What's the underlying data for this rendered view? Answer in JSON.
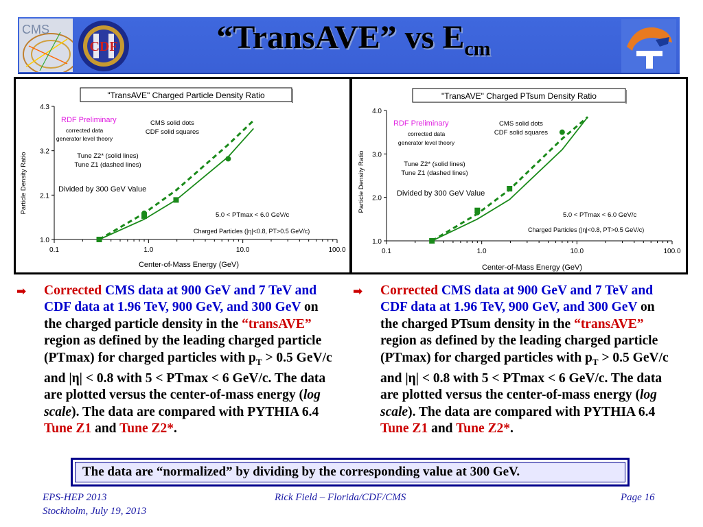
{
  "slide": {
    "title_main": "“TransAVE” vs E",
    "title_sub": "cm",
    "logos": {
      "cms_label": "CMS",
      "cdf_label": "CDF"
    }
  },
  "chart_data": [
    {
      "type": "line",
      "title": "\"TransAVE\" Charged Particle Density Ratio",
      "xlabel": "Center-of-Mass Energy  (GeV)",
      "ylabel": "Particle Density Ratio",
      "xscale": "log",
      "xlim": [
        0.1,
        100.0
      ],
      "ylim": [
        1.0,
        4.3
      ],
      "xticks": [
        "0.1",
        "1.0",
        "10.0",
        "100.0"
      ],
      "yticks": [
        "1.0",
        "2.1",
        "3.2",
        "4.3"
      ],
      "annotations": {
        "preliminary": "RDF Preliminary",
        "corrected": "corrected data",
        "generator": "generator level theory",
        "cms_marker": "CMS solid dots",
        "cdf_marker": "CDF solid squares",
        "tune_z2": "Tune Z2* (solid lines)",
        "tune_z1": "Tune Z1 (dashed lines)",
        "divided": "Divided by 300 GeV Value",
        "ptmax_range": "5.0 < PTmax < 6.0 GeV/c",
        "charged": "Charged Particles (|η|<0.8, PT>0.5 GeV/c)"
      },
      "series": [
        {
          "type": "scatter",
          "marker": "circle",
          "x": [
            0.9,
            7.0
          ],
          "y": [
            1.65,
            3.0
          ]
        },
        {
          "type": "scatter",
          "marker": "square",
          "x": [
            0.3,
            0.9,
            1.96
          ],
          "y": [
            1.0,
            1.58,
            1.98
          ]
        },
        {
          "type": "line",
          "style": "solid",
          "x": [
            0.3,
            0.9,
            1.96,
            7.0,
            13.0
          ],
          "y": [
            1.0,
            1.5,
            1.98,
            3.05,
            3.75
          ]
        },
        {
          "type": "line",
          "style": "dashed",
          "x": [
            0.3,
            0.9,
            1.96,
            7.0,
            13.0
          ],
          "y": [
            1.0,
            1.65,
            2.22,
            3.35,
            3.95
          ]
        }
      ]
    },
    {
      "type": "line",
      "title": "\"TransAVE\" Charged PTsum Density Ratio",
      "xlabel": "Center-of-Mass Energy  (GeV)",
      "ylabel": "Particle Density Ratio",
      "xscale": "log",
      "xlim": [
        0.1,
        100.0
      ],
      "ylim": [
        1.0,
        4.0
      ],
      "xticks": [
        "0.1",
        "1.0",
        "10.0",
        "100.0"
      ],
      "yticks": [
        "1.0",
        "2.0",
        "3.0",
        "4.0"
      ],
      "annotations": {
        "preliminary": "RDF Preliminary",
        "corrected": "corrected data",
        "generator": "generator level theory",
        "cms_marker": "CMS solid dots",
        "cdf_marker": "CDF solid squares",
        "tune_z2": "Tune Z2* (solid lines)",
        "tune_z1": "Tune Z1 (dashed lines)",
        "divided": "Divided by 300 GeV Value",
        "ptmax_range": "5.0 < PTmax < 6.0 GeV/c",
        "charged": "Charged Particles (|η|<0.8, PT>0.5 GeV/c)"
      },
      "series": [
        {
          "type": "scatter",
          "marker": "circle",
          "x": [
            0.9,
            7.0
          ],
          "y": [
            1.65,
            3.5
          ]
        },
        {
          "type": "scatter",
          "marker": "square",
          "x": [
            0.3,
            0.9,
            1.96
          ],
          "y": [
            1.0,
            1.7,
            2.2
          ]
        },
        {
          "type": "line",
          "style": "solid",
          "x": [
            0.3,
            0.9,
            1.96,
            7.0,
            13.0
          ],
          "y": [
            1.0,
            1.5,
            1.95,
            3.1,
            3.85
          ]
        },
        {
          "type": "line",
          "style": "dashed",
          "x": [
            0.3,
            0.9,
            1.96,
            7.0,
            13.0
          ],
          "y": [
            1.0,
            1.62,
            2.18,
            3.35,
            3.85
          ]
        }
      ]
    }
  ],
  "bullets": [
    {
      "corrected": "Corrected",
      "data_desc": "CMS data at 900 GeV and 7 TeV and CDF data at 1.96 TeV, 900 GeV, and 300 GeV",
      "on_the": "on the charged particle density in the",
      "region_quoted": "“transAVE”",
      "rest1": "region as defined by the leading charged particle (PTmax) for charged particles with p",
      "pt_sub": "T",
      "rest2": "> 0.5 GeV/c and |η| < 0.8 with 5 < PTmax < 6 GeV/c. The data are plotted versus the center-of-mass energy (",
      "log_scale": "log scale",
      "rest3": "). The data are compared with PYTHIA 6.4",
      "tune_z1": "Tune Z1",
      "and": "and",
      "tune_z2": "Tune Z2*",
      "period": "."
    },
    {
      "corrected": "Corrected",
      "data_desc": "CMS data at 900 GeV and 7 TeV and CDF data at 1.96 TeV, 900 GeV, and 300 GeV",
      "on_the": "on the charged PTsum density in the",
      "region_quoted": "“transAVE”",
      "rest1": "region as defined by the leading charged particle (PTmax) for charged particles with p",
      "pt_sub": "T",
      "rest2": "> 0.5 GeV/c and |η| < 0.8 with 5 < PTmax < 6 GeV/c. The data are plotted versus the center-of-mass energy (",
      "log_scale": "log scale",
      "rest3": "). The data are compared with PYTHIA 6.4",
      "tune_z1": "Tune Z1",
      "and": "and",
      "tune_z2": "Tune Z2*",
      "period": "."
    }
  ],
  "note": "The data are “normalized” by dividing by the corresponding value at 300 GeV.",
  "footer": {
    "conference": "EPS-HEP 2013",
    "location_date": "Stockholm, July 19, 2013",
    "author": "Rick Field – Florida/CDF/CMS",
    "page": "Page 16"
  },
  "colors": {
    "header_blue": "#3a62d8",
    "series_green": "#1a8a1a",
    "accent_red": "#cc0000",
    "accent_blue": "#0000cc",
    "preliminary_magenta": "#e020e0"
  }
}
